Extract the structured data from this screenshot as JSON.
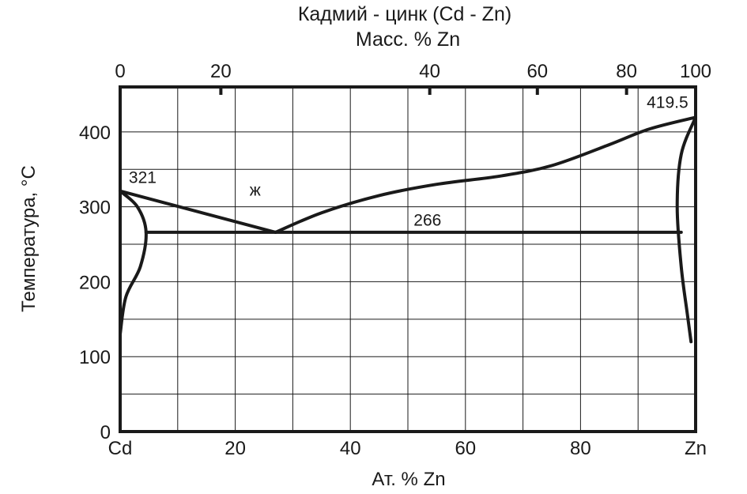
{
  "chart_data": {
    "type": "line",
    "title": "Кадмий - цинк (Cd - Zn)",
    "subtitle": "Масс. % Zn",
    "xlabel": "Ат. % Zn",
    "ylabel": "Температура,  °C",
    "xlim": [
      0,
      100
    ],
    "ylim": [
      0,
      460
    ],
    "x_ticks": [
      {
        "value": 0,
        "label": "Cd"
      },
      {
        "value": 20,
        "label": "20"
      },
      {
        "value": 40,
        "label": "40"
      },
      {
        "value": 60,
        "label": "60"
      },
      {
        "value": 80,
        "label": "80"
      },
      {
        "value": 100,
        "label": "Zn"
      }
    ],
    "y_ticks": [
      {
        "value": 0,
        "label": "0"
      },
      {
        "value": 100,
        "label": "100"
      },
      {
        "value": 200,
        "label": "200"
      },
      {
        "value": 300,
        "label": "300"
      },
      {
        "value": 400,
        "label": "400"
      }
    ],
    "top_ticks": [
      {
        "at_pct": 0,
        "label": "0"
      },
      {
        "at_pct": 17.5,
        "label": "20"
      },
      {
        "at_pct": 53.8,
        "label": "40"
      },
      {
        "at_pct": 72.5,
        "label": "60"
      },
      {
        "at_pct": 88,
        "label": "80"
      },
      {
        "at_pct": 100,
        "label": "100"
      }
    ],
    "grid": true,
    "grid_x": [
      0,
      10,
      20,
      30,
      40,
      50,
      60,
      70,
      80,
      90,
      100
    ],
    "grid_y": [
      0,
      50,
      100,
      150,
      200,
      250,
      300,
      350,
      400
    ],
    "series": [
      {
        "id": "liquidus-cd",
        "points": [
          [
            0,
            321
          ],
          [
            27,
            266
          ]
        ]
      },
      {
        "id": "liquidus-zn",
        "points": [
          [
            27,
            266
          ],
          [
            35,
            292
          ],
          [
            45,
            315
          ],
          [
            55,
            330
          ],
          [
            66,
            341
          ],
          [
            75,
            355
          ],
          [
            85,
            383
          ],
          [
            92,
            404
          ],
          [
            100,
            419.5
          ]
        ]
      },
      {
        "id": "eutectic",
        "points": [
          [
            4.5,
            266
          ],
          [
            97.5,
            266
          ]
        ]
      },
      {
        "id": "solvus-cd",
        "points": [
          [
            0,
            321
          ],
          [
            3,
            300
          ],
          [
            4.5,
            266
          ],
          [
            3.5,
            220
          ],
          [
            1,
            180
          ],
          [
            0,
            130
          ]
        ]
      },
      {
        "id": "solvus-zn",
        "points": [
          [
            100,
            419.5
          ],
          [
            97.5,
            370
          ],
          [
            96.8,
            300
          ],
          [
            97.5,
            220
          ],
          [
            98.5,
            160
          ],
          [
            99.2,
            120
          ]
        ]
      }
    ],
    "annotations": [
      {
        "text": "321",
        "x": 1.5,
        "y": 332
      },
      {
        "text": "ж",
        "x": 22.5,
        "y": 315
      },
      {
        "text": "266",
        "x": 51,
        "y": 275
      },
      {
        "text": "419.5",
        "x": 91.5,
        "y": 432
      }
    ]
  }
}
